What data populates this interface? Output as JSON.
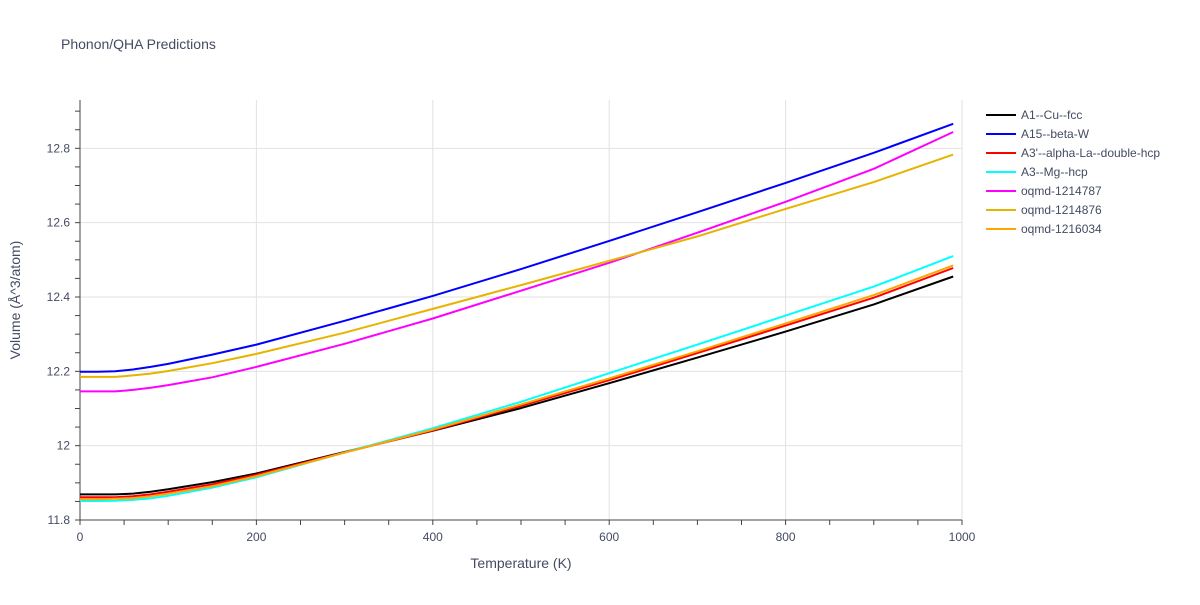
{
  "chart_data": {
    "type": "line",
    "title": "Phonon/QHA Predictions",
    "xlabel": "Temperature (K)",
    "ylabel": "Volume (Å^3/atom)",
    "xlim": [
      0,
      1000
    ],
    "ylim": [
      11.8,
      12.93
    ],
    "x_ticks": [
      0,
      200,
      400,
      600,
      800,
      1000
    ],
    "x_tick_labels": [
      "0",
      "200",
      "400",
      "600",
      "800",
      "1000"
    ],
    "y_ticks": [
      11.8,
      12.0,
      12.2,
      12.4,
      12.6,
      12.8
    ],
    "y_tick_labels": [
      "11.8",
      "12",
      "12.2",
      "12.4",
      "12.6",
      "12.8"
    ],
    "grid": true,
    "legend_position": "top-right",
    "series": [
      {
        "name": "A1--Cu--fcc",
        "color": "#000000",
        "x": [
          0,
          20,
          40,
          60,
          80,
          100,
          150,
          200,
          300,
          400,
          500,
          600,
          700,
          800,
          900,
          990
        ],
        "y": [
          11.869,
          11.869,
          11.869,
          11.871,
          11.876,
          11.883,
          11.902,
          11.925,
          11.983,
          12.04,
          12.101,
          12.168,
          12.237,
          12.307,
          12.38,
          12.455
        ]
      },
      {
        "name": "A15--beta-W",
        "color": "#0000ff",
        "x": [
          0,
          20,
          40,
          60,
          80,
          100,
          150,
          200,
          300,
          400,
          500,
          600,
          700,
          800,
          900,
          990
        ],
        "y": [
          12.199,
          12.199,
          12.2,
          12.205,
          12.212,
          12.22,
          12.245,
          12.272,
          12.336,
          12.403,
          12.475,
          12.551,
          12.628,
          12.707,
          12.788,
          12.866
        ]
      },
      {
        "name": "A3'--alpha-La--double-hcp",
        "color": "#ff0000",
        "x": [
          0,
          20,
          40,
          60,
          80,
          100,
          150,
          200,
          300,
          400,
          500,
          600,
          700,
          800,
          900,
          990
        ],
        "y": [
          11.861,
          11.861,
          11.861,
          11.864,
          11.869,
          11.876,
          11.896,
          11.922,
          11.982,
          12.041,
          12.107,
          12.176,
          12.249,
          12.323,
          12.398,
          12.478
        ]
      },
      {
        "name": "A3--Mg--hcp",
        "color": "#00ffff",
        "x": [
          0,
          20,
          40,
          60,
          80,
          100,
          150,
          200,
          300,
          400,
          500,
          600,
          700,
          800,
          900,
          990
        ],
        "y": [
          11.851,
          11.851,
          11.852,
          11.854,
          11.858,
          11.865,
          11.887,
          11.915,
          11.982,
          12.047,
          12.118,
          12.195,
          12.272,
          12.35,
          12.428,
          12.51
        ]
      },
      {
        "name": "oqmd-1214787",
        "color": "#ff00ff",
        "x": [
          0,
          20,
          40,
          60,
          80,
          100,
          150,
          200,
          300,
          400,
          500,
          600,
          700,
          800,
          900,
          990
        ],
        "y": [
          12.146,
          12.146,
          12.146,
          12.15,
          12.156,
          12.163,
          12.184,
          12.212,
          12.274,
          12.342,
          12.417,
          12.492,
          12.573,
          12.656,
          12.745,
          12.844
        ]
      },
      {
        "name": "oqmd-1214876",
        "color": "#e6b400",
        "x": [
          0,
          20,
          40,
          60,
          80,
          100,
          150,
          200,
          300,
          400,
          500,
          600,
          700,
          800,
          900,
          990
        ],
        "y": [
          12.185,
          12.185,
          12.185,
          12.189,
          12.194,
          12.201,
          12.222,
          12.247,
          12.304,
          12.368,
          12.432,
          12.497,
          12.563,
          12.637,
          12.709,
          12.783
        ]
      },
      {
        "name": "oqmd-1216034",
        "color": "#ffa500",
        "x": [
          0,
          20,
          40,
          60,
          80,
          100,
          150,
          200,
          300,
          400,
          500,
          600,
          700,
          800,
          900,
          990
        ],
        "y": [
          11.856,
          11.856,
          11.857,
          11.859,
          11.864,
          11.871,
          11.891,
          11.918,
          11.981,
          12.043,
          12.111,
          12.181,
          12.254,
          12.329,
          12.405,
          12.485
        ]
      }
    ]
  }
}
